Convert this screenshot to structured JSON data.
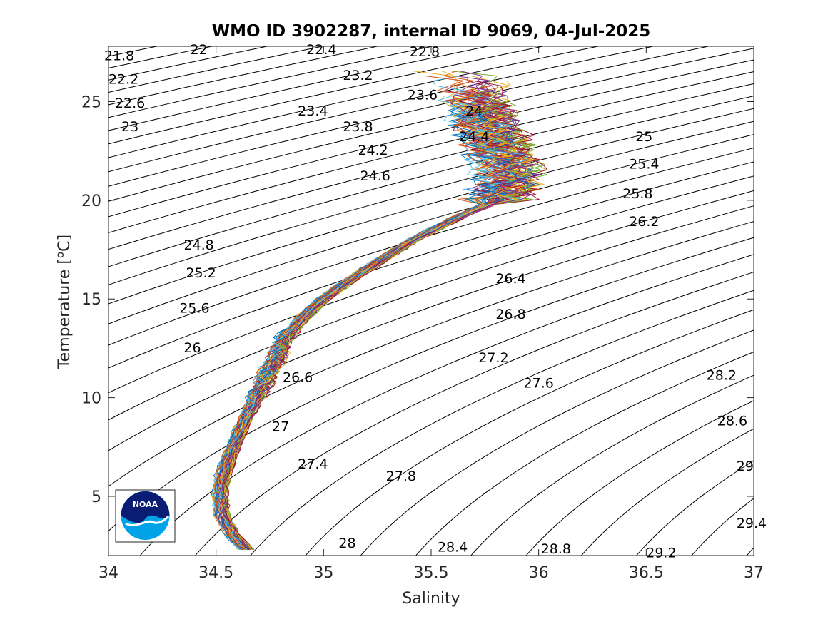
{
  "chart_data": {
    "type": "line",
    "title": "WMO ID 3902287, internal ID 9069, 04-Jul-2025",
    "xlabel": "Salinity",
    "ylabel": "Temperature [°C]",
    "ylabel_main": "Temperature [",
    "ylabel_sup": "o",
    "ylabel_end": "C]",
    "xlim": [
      34,
      37
    ],
    "ylim": [
      2,
      27.8
    ],
    "xticks": [
      34,
      34.5,
      35,
      35.5,
      36,
      36.5,
      37
    ],
    "xtick_labels": [
      "34",
      "34.5",
      "35",
      "35.5",
      "36",
      "36.5",
      "37"
    ],
    "yticks": [
      5,
      10,
      15,
      20,
      25
    ],
    "ytick_labels": [
      "5",
      "10",
      "15",
      "20",
      "25"
    ],
    "grid": false,
    "density_contours": {
      "ref_S": 35,
      "ref_T": 15,
      "ref_sigma": 26.33,
      "dS": 0.78,
      "aT": -0.205,
      "bT": -0.0055,
      "levels_from": 21.0,
      "levels_to": 30.4,
      "step": 0.2,
      "labeled": [
        {
          "v": "21.8",
          "s": 34.05,
          "t": 27.3
        },
        {
          "v": "22",
          "s": 34.42,
          "t": 27.6
        },
        {
          "v": "22.4",
          "s": 34.99,
          "t": 27.6
        },
        {
          "v": "22.8",
          "s": 35.47,
          "t": 27.5
        },
        {
          "v": "22.2",
          "s": 34.07,
          "t": 26.1
        },
        {
          "v": "22.6",
          "s": 34.1,
          "t": 24.9
        },
        {
          "v": "23",
          "s": 34.1,
          "t": 23.7
        },
        {
          "v": "23.2",
          "s": 35.16,
          "t": 26.3
        },
        {
          "v": "23.6",
          "s": 35.46,
          "t": 25.3
        },
        {
          "v": "23.4",
          "s": 34.95,
          "t": 24.5
        },
        {
          "v": "23.8",
          "s": 35.16,
          "t": 23.7
        },
        {
          "v": "24",
          "s": 35.7,
          "t": 24.5
        },
        {
          "v": "24.4",
          "s": 35.7,
          "t": 23.2
        },
        {
          "v": "24.2",
          "s": 35.23,
          "t": 22.5
        },
        {
          "v": "24.6",
          "s": 35.24,
          "t": 21.2
        },
        {
          "v": "25",
          "s": 36.49,
          "t": 23.2
        },
        {
          "v": "25.4",
          "s": 36.49,
          "t": 21.8
        },
        {
          "v": "25.8",
          "s": 36.46,
          "t": 20.3
        },
        {
          "v": "26.2",
          "s": 36.49,
          "t": 18.9
        },
        {
          "v": "24.8",
          "s": 34.42,
          "t": 17.7
        },
        {
          "v": "25.2",
          "s": 34.43,
          "t": 16.3
        },
        {
          "v": "25.6",
          "s": 34.4,
          "t": 14.5
        },
        {
          "v": "26",
          "s": 34.39,
          "t": 12.5
        },
        {
          "v": "26.6",
          "s": 34.88,
          "t": 11.0
        },
        {
          "v": "26.4",
          "s": 35.87,
          "t": 16.0
        },
        {
          "v": "26.8",
          "s": 35.87,
          "t": 14.2
        },
        {
          "v": "27.2",
          "s": 35.79,
          "t": 12.0
        },
        {
          "v": "27.6",
          "s": 36.0,
          "t": 10.7
        },
        {
          "v": "28.2",
          "s": 36.85,
          "t": 11.1
        },
        {
          "v": "28.6",
          "s": 36.9,
          "t": 8.8
        },
        {
          "v": "29",
          "s": 36.96,
          "t": 6.5
        },
        {
          "v": "29.4",
          "s": 36.99,
          "t": 3.6
        },
        {
          "v": "27",
          "s": 34.8,
          "t": 8.5
        },
        {
          "v": "27.4",
          "s": 34.95,
          "t": 6.6
        },
        {
          "v": "27.8",
          "s": 35.36,
          "t": 6.0
        },
        {
          "v": "28",
          "s": 35.11,
          "t": 2.6
        },
        {
          "v": "28.4",
          "s": 35.6,
          "t": 2.4
        },
        {
          "v": "28.8",
          "s": 36.08,
          "t": 2.3
        },
        {
          "v": "29.2",
          "s": 36.57,
          "t": 2.1
        }
      ]
    },
    "profile_envelope": [
      [
        34.64,
        2.3
      ],
      [
        34.58,
        3.0
      ],
      [
        34.53,
        4.0
      ],
      [
        34.52,
        5.0
      ],
      [
        34.53,
        6.0
      ],
      [
        34.56,
        7.0
      ],
      [
        34.6,
        8.0
      ],
      [
        34.64,
        9.0
      ],
      [
        34.69,
        10.0
      ],
      [
        34.73,
        11.0
      ],
      [
        34.78,
        12.0
      ],
      [
        34.82,
        13.0
      ],
      [
        34.9,
        14.0
      ],
      [
        35.0,
        15.0
      ],
      [
        35.13,
        16.0
      ],
      [
        35.27,
        17.0
      ],
      [
        35.42,
        18.0
      ],
      [
        35.6,
        19.0
      ],
      [
        35.8,
        20.0
      ],
      [
        35.87,
        21.0
      ],
      [
        35.85,
        22.0
      ],
      [
        35.8,
        23.0
      ],
      [
        35.75,
        24.0
      ],
      [
        35.72,
        25.0
      ],
      [
        35.7,
        26.0
      ],
      [
        35.6,
        26.6
      ]
    ],
    "series_count": 60,
    "series_colors": [
      "#0072bd",
      "#d95319",
      "#edb120",
      "#7e2f8e",
      "#77ac30",
      "#4dbeee",
      "#a2142f"
    ]
  },
  "logo": {
    "text": "NOAA",
    "colors": {
      "navy": "#0a1d74",
      "cyan": "#00a3e8",
      "white": "#ffffff"
    }
  }
}
